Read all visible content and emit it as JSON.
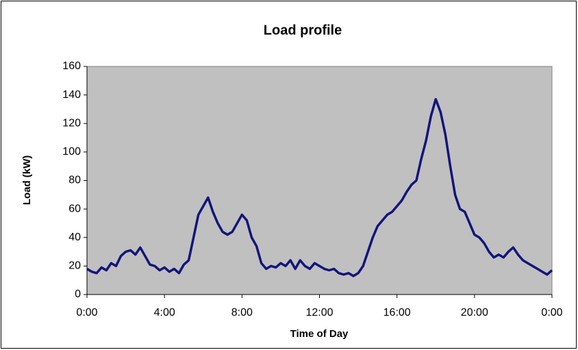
{
  "chart_data": {
    "type": "line",
    "title": "Load profile",
    "xlabel": "Time of Day",
    "ylabel": "Load (kW)",
    "x": [
      0,
      0.25,
      0.5,
      0.75,
      1,
      1.25,
      1.5,
      1.75,
      2,
      2.25,
      2.5,
      2.75,
      3,
      3.25,
      3.5,
      3.75,
      4,
      4.25,
      4.5,
      4.75,
      5,
      5.25,
      5.5,
      5.75,
      6,
      6.25,
      6.5,
      6.75,
      7,
      7.25,
      7.5,
      7.75,
      8,
      8.25,
      8.5,
      8.75,
      9,
      9.25,
      9.5,
      9.75,
      10,
      10.25,
      10.5,
      10.75,
      11,
      11.25,
      11.5,
      11.75,
      12,
      12.25,
      12.5,
      12.75,
      13,
      13.25,
      13.5,
      13.75,
      14,
      14.25,
      14.5,
      14.75,
      15,
      15.25,
      15.5,
      15.75,
      16,
      16.25,
      16.5,
      16.75,
      17,
      17.25,
      17.5,
      17.75,
      18,
      18.25,
      18.5,
      18.75,
      19,
      19.25,
      19.5,
      19.75,
      20,
      20.25,
      20.5,
      20.75,
      21,
      21.25,
      21.5,
      21.75,
      22,
      22.25,
      22.5,
      22.75,
      23,
      23.25,
      23.5,
      23.75,
      24
    ],
    "series": [
      {
        "name": "Load",
        "color": "#14147a",
        "values": [
          18,
          16,
          15,
          19,
          17,
          22,
          20,
          27,
          30,
          31,
          28,
          33,
          27,
          21,
          20,
          17,
          19,
          16,
          18,
          15,
          21,
          24,
          40,
          56,
          62,
          68,
          58,
          50,
          44,
          42,
          44,
          50,
          56,
          52,
          40,
          34,
          22,
          18,
          20,
          19,
          22,
          20,
          24,
          18,
          24,
          20,
          18,
          22,
          20,
          18,
          17,
          18,
          15,
          14,
          15,
          13,
          15,
          20,
          30,
          40,
          48,
          52,
          56,
          58,
          62,
          66,
          72,
          77,
          80,
          95,
          108,
          125,
          137,
          128,
          112,
          90,
          70,
          60,
          58,
          50,
          42,
          40,
          36,
          30,
          26,
          28,
          26,
          30,
          33,
          28,
          24,
          22,
          20,
          18,
          16,
          14,
          17
        ]
      }
    ],
    "xlim": [
      0,
      24
    ],
    "xticks": [
      {
        "value": 0,
        "label": "0:00"
      },
      {
        "value": 4,
        "label": "4:00"
      },
      {
        "value": 8,
        "label": "8:00"
      },
      {
        "value": 12,
        "label": "12:00"
      },
      {
        "value": 16,
        "label": "16:00"
      },
      {
        "value": 20,
        "label": "20:00"
      },
      {
        "value": 24,
        "label": "0:00"
      }
    ],
    "ylim": [
      0,
      160
    ],
    "yticks": [
      0,
      20,
      40,
      60,
      80,
      100,
      120,
      140,
      160
    ],
    "plot_background": "#c0c0c0",
    "grid": false
  }
}
